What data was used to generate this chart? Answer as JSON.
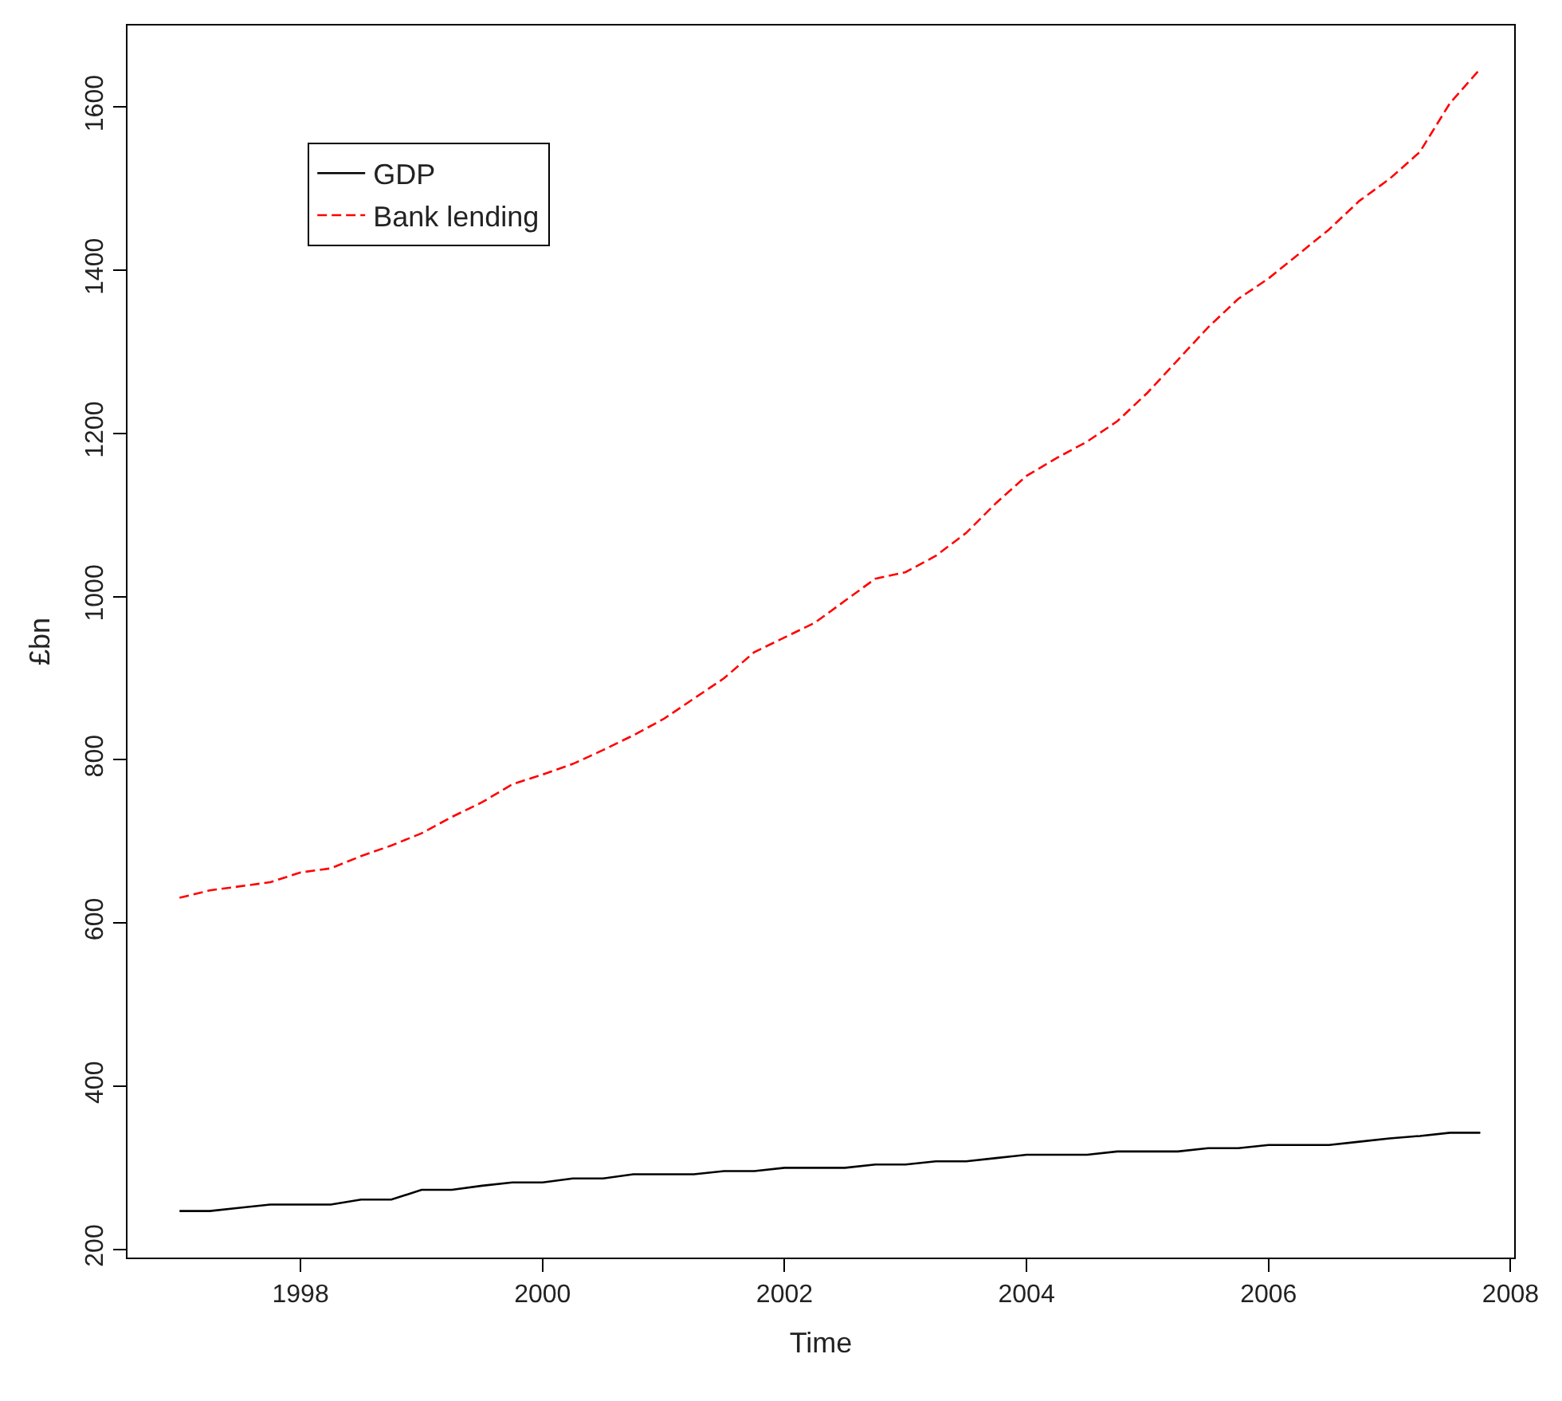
{
  "chart_data": {
    "type": "line",
    "xlabel": "Time",
    "ylabel": "£bn",
    "x": [
      1997,
      1997.25,
      1997.5,
      1997.75,
      1998,
      1998.25,
      1998.5,
      1998.75,
      1999,
      1999.25,
      1999.5,
      1999.75,
      2000,
      2000.25,
      2000.5,
      2000.75,
      2001,
      2001.25,
      2001.5,
      2001.75,
      2002,
      2002.25,
      2002.5,
      2002.75,
      2003,
      2003.25,
      2003.5,
      2003.75,
      2004,
      2004.25,
      2004.5,
      2004.75,
      2005,
      2005.25,
      2005.5,
      2005.75,
      2006,
      2006.25,
      2006.5,
      2006.75,
      2007,
      2007.25,
      2007.5,
      2007.75
    ],
    "series": [
      {
        "name": "GDP",
        "color": "#000000",
        "line_style": "solid",
        "values": [
          247,
          247,
          251,
          255,
          255,
          255,
          261,
          261,
          273,
          273,
          278,
          282,
          282,
          287,
          287,
          292,
          292,
          292,
          296,
          296,
          300,
          300,
          300,
          304,
          304,
          308,
          308,
          312,
          316,
          316,
          316,
          320,
          320,
          320,
          324,
          324,
          328,
          328,
          328,
          332,
          336,
          339,
          343,
          343
        ]
      },
      {
        "name": "Bank lending",
        "color": "#ff0000",
        "line_style": "dashed",
        "values": [
          631,
          640,
          645,
          650,
          662,
          667,
          682,
          695,
          710,
          730,
          748,
          770,
          782,
          795,
          812,
          830,
          850,
          875,
          900,
          932,
          950,
          968,
          995,
          1022,
          1030,
          1050,
          1078,
          1115,
          1148,
          1170,
          1190,
          1215,
          1250,
          1290,
          1330,
          1365,
          1390,
          1420,
          1450,
          1485,
          1512,
          1545,
          1605,
          1647
        ]
      }
    ],
    "xlim": [
      1996.57,
      2008.03
    ],
    "ylim": [
      190,
      1700
    ],
    "xticks": [
      1998,
      2000,
      2002,
      2004,
      2006,
      2008
    ],
    "yticks": [
      200,
      400,
      600,
      800,
      1000,
      1200,
      1400,
      1600
    ],
    "legend": "top left",
    "marker": "none"
  }
}
